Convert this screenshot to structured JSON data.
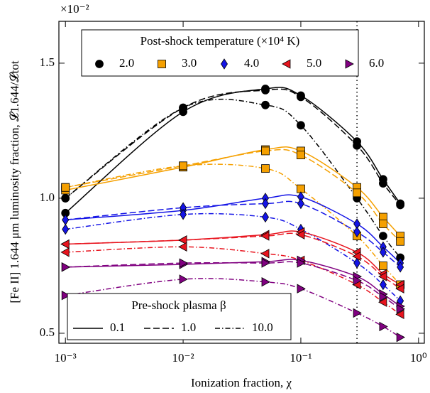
{
  "chart_data": {
    "type": "line",
    "x_label": "Ionization fraction, χ",
    "y_label": "[Fe II] 1.644 μm luminosity fraction, 𝓛1.644/𝓛tot",
    "y_multiplier": "×10⁻²",
    "log_x": true,
    "xlim": [
      0.00088,
      1.12
    ],
    "ylim": [
      0.463,
      1.655
    ],
    "xticks": [
      {
        "value": 0.001,
        "label": "10⁻³"
      },
      {
        "value": 0.01,
        "label": "10⁻²"
      },
      {
        "value": 0.1,
        "label": "10⁻¹"
      },
      {
        "value": 1,
        "label": "10⁰"
      }
    ],
    "yticks": [
      {
        "value": 0.5,
        "label": "0.5"
      },
      {
        "value": 1,
        "label": "1.0"
      },
      {
        "value": 1.5,
        "label": "1.5"
      }
    ],
    "vline": 0.3,
    "x": [
      0.001,
      0.01,
      0.05,
      0.1,
      0.3,
      0.5,
      0.7
    ],
    "legend_title": "Post-shock temperature (×10⁴ K)",
    "series": [
      {
        "name": "2.0",
        "color": "#000000",
        "marker": "circle",
        "values": [
          [
            0.945,
            1.32,
            1.405,
            1.38,
            1.21,
            1.07,
            0.98
          ],
          [
            1.0,
            1.335,
            1.4,
            1.375,
            1.195,
            1.055,
            0.975
          ],
          [
            1.0,
            1.335,
            1.345,
            1.27,
            1.0,
            0.86,
            0.78
          ]
        ]
      },
      {
        "name": "3.0",
        "color": "#f5a000",
        "marker": "square",
        "values": [
          [
            1.03,
            1.115,
            1.18,
            1.175,
            1.04,
            0.93,
            0.86
          ],
          [
            1.04,
            1.12,
            1.175,
            1.16,
            1.02,
            0.905,
            0.84
          ],
          [
            1.04,
            1.12,
            1.11,
            1.035,
            0.86,
            0.75,
            0.68
          ]
        ]
      },
      {
        "name": "4.0",
        "color": "#1414e6",
        "marker": "diamond",
        "values": [
          [
            0.92,
            0.955,
            1.0,
            1.005,
            0.905,
            0.82,
            0.76
          ],
          [
            0.92,
            0.965,
            0.98,
            0.98,
            0.875,
            0.8,
            0.745
          ],
          [
            0.885,
            0.94,
            0.93,
            0.885,
            0.76,
            0.68,
            0.62
          ]
        ]
      },
      {
        "name": "5.0",
        "color": "#e8141e",
        "marker": "left",
        "values": [
          [
            0.83,
            0.845,
            0.865,
            0.875,
            0.8,
            0.72,
            0.68
          ],
          [
            0.83,
            0.845,
            0.86,
            0.865,
            0.785,
            0.71,
            0.665
          ],
          [
            0.8,
            0.82,
            0.795,
            0.77,
            0.68,
            0.615,
            0.57
          ]
        ]
      },
      {
        "name": "6.0",
        "color": "#800080",
        "marker": "right",
        "values": [
          [
            0.745,
            0.755,
            0.765,
            0.77,
            0.71,
            0.645,
            0.6
          ],
          [
            0.745,
            0.76,
            0.76,
            0.76,
            0.695,
            0.635,
            0.59
          ],
          [
            0.64,
            0.7,
            0.69,
            0.665,
            0.575,
            0.525,
            0.485
          ]
        ]
      }
    ],
    "style_legend_title": "Pre-shock plasma β",
    "line_styles": [
      {
        "name": "0.1",
        "dash": "solid"
      },
      {
        "name": "1.0",
        "dash": "dashed"
      },
      {
        "name": "10.0",
        "dash": "dashdot"
      }
    ]
  }
}
